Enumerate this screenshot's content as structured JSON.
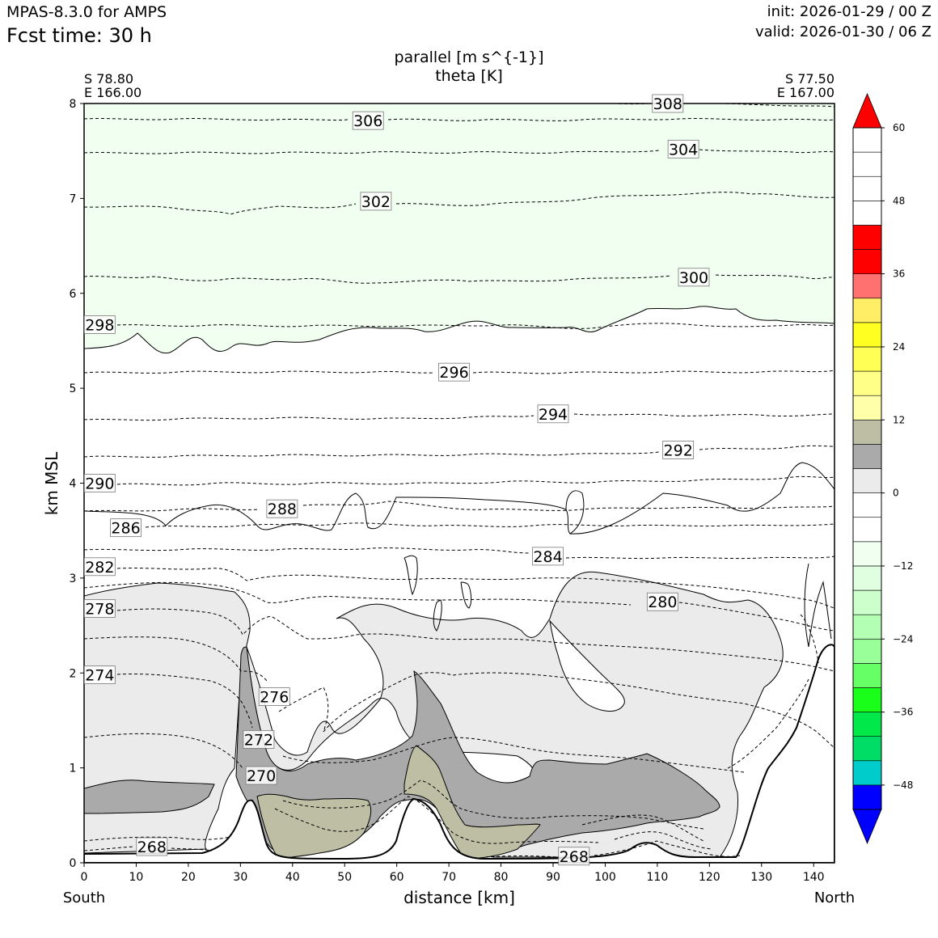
{
  "header": {
    "model": "MPAS-8.3.0 for AMPS",
    "fcst_time": "Fcst time:   30 h",
    "init": "init: 2026-01-29 / 00 Z",
    "valid": "valid: 2026-01-30 / 06 Z"
  },
  "chart_data": {
    "type": "cross-section",
    "title": [
      "parallel [m s^{-1}]",
      "theta [K]"
    ],
    "start_point": [
      "S 78.80",
      "E 166.00"
    ],
    "end_point": [
      "S 77.50",
      "E 167.00"
    ],
    "xlabel": "distance [km]",
    "ylabel": "km MSL",
    "x_start_label": "South",
    "x_end_label": "North",
    "xlim": [
      0,
      144
    ],
    "ylim": [
      0,
      8
    ],
    "xticks": [
      0,
      10,
      20,
      30,
      40,
      50,
      60,
      70,
      80,
      90,
      100,
      110,
      120,
      130,
      140
    ],
    "yticks": [
      0,
      1,
      2,
      3,
      4,
      5,
      6,
      7,
      8
    ],
    "colorbar": {
      "ticks": [
        60,
        48,
        36,
        24,
        12,
        0,
        -12,
        -24,
        -36,
        -48
      ],
      "tick_labels": [
        "60",
        "48",
        "36",
        "24",
        "12",
        "0",
        "−12",
        "−24",
        "−36",
        "−48"
      ],
      "levels": [
        -52,
        -48,
        -44,
        -40,
        -36,
        -32,
        -28,
        -24,
        -20,
        -16,
        -12,
        -8,
        -4,
        0,
        4,
        8,
        12,
        16,
        20,
        24,
        28,
        32,
        36,
        40,
        44,
        48,
        52,
        56,
        60
      ],
      "colors": [
        "#0000ff",
        "#00cccc",
        "#00dd66",
        "#00e84a",
        "#19ff19",
        "#66ff66",
        "#99ff99",
        "#b3ffb3",
        "#ccffcc",
        "#e0ffe0",
        "#f0fff0",
        "#ffffff",
        "#ffffff",
        "#ebebeb",
        "#aaaaaa",
        "#bebea4",
        "#ffffaa",
        "#ffff88",
        "#ffff55",
        "#ffff22",
        "#ffee66",
        "#ff7070",
        "#ff0000",
        "#ff0000"
      ],
      "under_color": "#0000ff",
      "over_color": "#ff0000"
    },
    "theta_labels": [
      {
        "text": "306",
        "x": 54.5,
        "y": 7.82
      },
      {
        "text": "308",
        "x": 112,
        "y": 8.0
      },
      {
        "text": "304",
        "x": 115,
        "y": 7.52
      },
      {
        "text": "302",
        "x": 56,
        "y": 6.97
      },
      {
        "text": "300",
        "x": 117,
        "y": 6.17
      },
      {
        "text": "298",
        "x": 3,
        "y": 5.67
      },
      {
        "text": "296",
        "x": 71,
        "y": 5.17
      },
      {
        "text": "294",
        "x": 90,
        "y": 4.73
      },
      {
        "text": "292",
        "x": 114,
        "y": 4.35
      },
      {
        "text": "290",
        "x": 3,
        "y": 4.0
      },
      {
        "text": "288",
        "x": 38,
        "y": 3.73
      },
      {
        "text": "286",
        "x": 8,
        "y": 3.53
      },
      {
        "text": "284",
        "x": 89,
        "y": 3.23
      },
      {
        "text": "282",
        "x": 3,
        "y": 3.12
      },
      {
        "text": "280",
        "x": 111,
        "y": 2.75
      },
      {
        "text": "278",
        "x": 3,
        "y": 2.68
      },
      {
        "text": "276",
        "x": 36.5,
        "y": 1.75
      },
      {
        "text": "274",
        "x": 3,
        "y": 1.98
      },
      {
        "text": "272",
        "x": 33.5,
        "y": 1.3
      },
      {
        "text": "270",
        "x": 34,
        "y": 0.92
      },
      {
        "text": "268",
        "x": 13,
        "y": 0.17
      },
      {
        "text": "268",
        "x": 94,
        "y": 0.07
      }
    ]
  }
}
